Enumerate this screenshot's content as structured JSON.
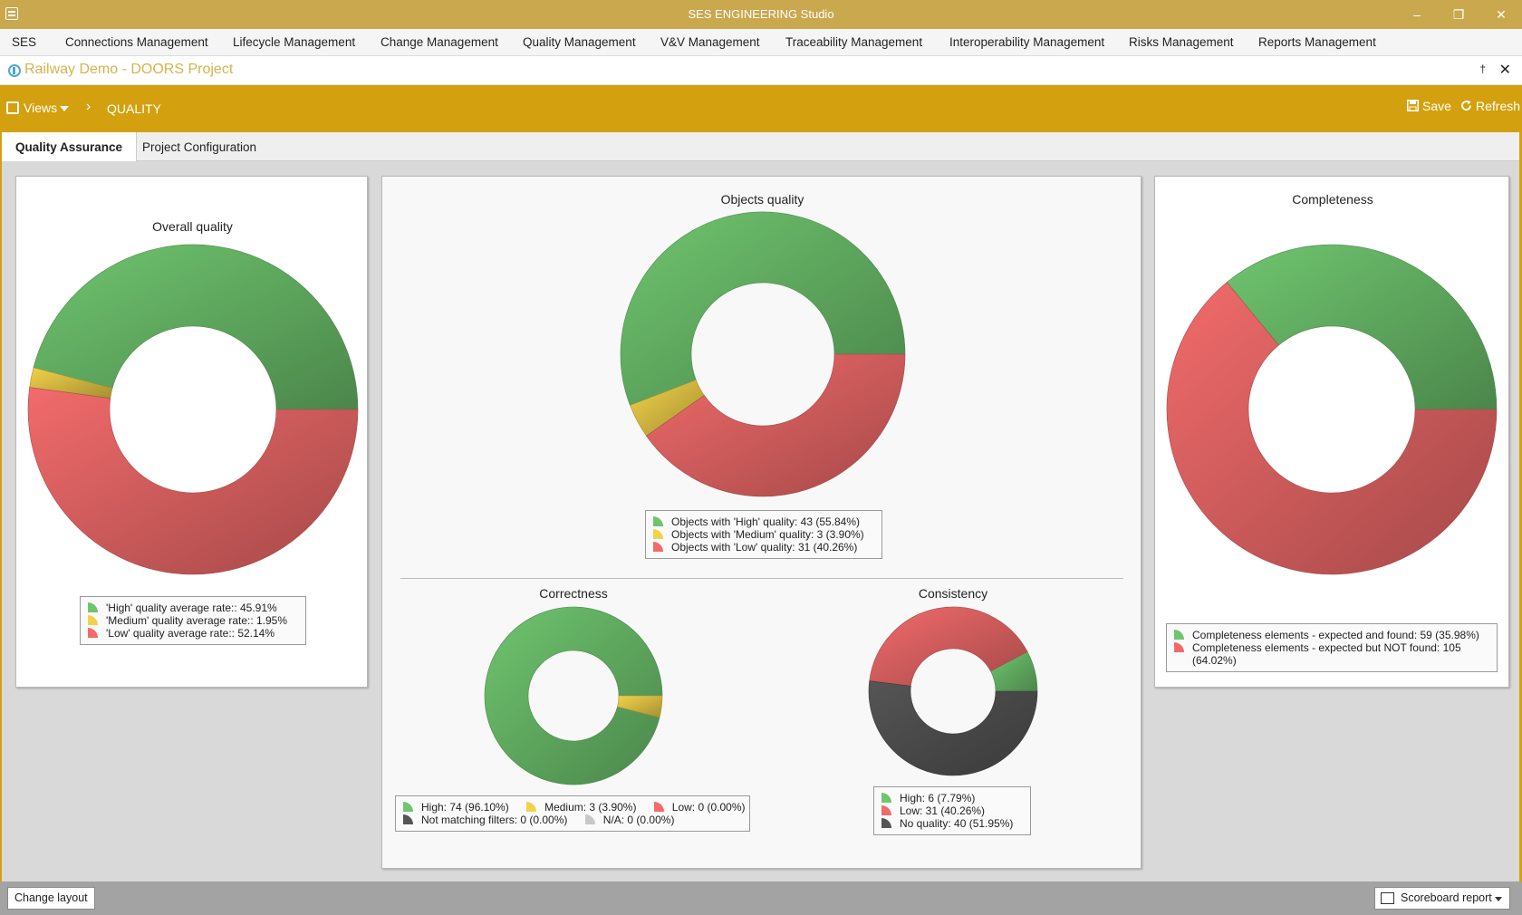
{
  "window": {
    "title": "SES ENGINEERING Studio",
    "minimize_icon": "minimize-icon",
    "restore_icon": "restore-icon",
    "close_icon": "close-icon"
  },
  "menu": {
    "items": [
      "SES",
      "Connections Management",
      "Lifecycle Management",
      "Change Management",
      "Quality Management",
      "V&V Management",
      "Traceability Management",
      "Interoperability Management",
      "Risks Management",
      "Reports Management"
    ]
  },
  "project": {
    "title": "Railway Demo - DOORS Project",
    "pin_glyph": "†",
    "close_glyph": "✕"
  },
  "toolbar": {
    "views_label": "Views",
    "breadcrumb_sep": "›",
    "breadcrumb": "QUALITY",
    "save_label": "Save",
    "refresh_label": "Refresh"
  },
  "tabs": [
    "Quality Assurance",
    "Project Configuration"
  ],
  "colors": {
    "high": "#6fc56f",
    "medium": "#f2d24a",
    "low": "#f26b6b",
    "none": "#555555",
    "na": "#c8c8c8",
    "accent": "#d3a10f",
    "title_bar": "#c9a84e"
  },
  "chart_data": [
    {
      "id": "overall",
      "type": "pie",
      "title": "Overall quality",
      "categories": [
        "High",
        "Medium",
        "Low"
      ],
      "values": [
        45.91,
        1.95,
        52.14
      ],
      "legend": [
        "'High' quality average rate:: 45.91%",
        "'Medium' quality average rate:: 1.95%",
        "'Low' quality average rate:: 52.14%"
      ]
    },
    {
      "id": "objects",
      "type": "pie",
      "title": "Objects quality",
      "categories": [
        "High",
        "Medium",
        "Low"
      ],
      "values": [
        43,
        3,
        31
      ],
      "legend": [
        "Objects with 'High' quality: 43 (55.84%)",
        "Objects with 'Medium' quality: 3 (3.90%)",
        "Objects with 'Low' quality: 31 (40.26%)"
      ]
    },
    {
      "id": "completeness",
      "type": "pie",
      "title": "Completeness",
      "categories": [
        "Expected and found",
        "Expected but NOT found"
      ],
      "values": [
        59,
        105
      ],
      "legend": [
        "Completeness elements - expected and found: 59 (35.98%)",
        "Completeness elements - expected but NOT found: 105",
        "(64.02%)"
      ]
    },
    {
      "id": "correctness",
      "type": "pie",
      "title": "Correctness",
      "categories": [
        "High",
        "Medium",
        "Low",
        "Not matching filters",
        "N/A"
      ],
      "values": [
        74,
        3,
        0,
        0,
        0
      ],
      "legend": [
        "High: 74 (96.10%)",
        "Medium: 3 (3.90%)",
        "Low: 0 (0.00%)",
        "Not matching filters: 0 (0.00%)",
        "N/A: 0 (0.00%)"
      ]
    },
    {
      "id": "consistency",
      "type": "pie",
      "title": "Consistency",
      "categories": [
        "High",
        "Low",
        "No quality"
      ],
      "values": [
        6,
        31,
        40
      ],
      "legend": [
        "High: 6 (7.79%)",
        "Low: 31 (40.26%)",
        "No quality: 40 (51.95%)"
      ]
    }
  ],
  "statusbar": {
    "change_layout": "Change layout",
    "scoreboard": "Scoreboard report"
  }
}
